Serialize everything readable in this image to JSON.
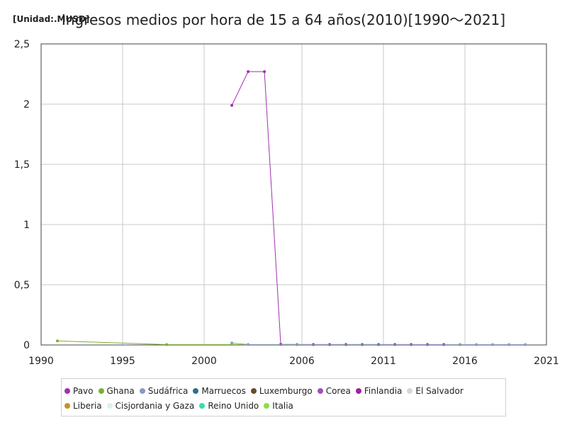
{
  "unit_label": "[Unidad:.MUSD]",
  "chart_data": {
    "type": "line",
    "title": "Ingresos medios por hora de 15 a 64 años(2010)[1990～2021]",
    "xlabel": "",
    "ylabel": "",
    "xlim": [
      1990,
      2021
    ],
    "ylim": [
      0,
      2.5
    ],
    "x_ticks": [
      1990,
      1995,
      2000,
      2006,
      2011,
      2016,
      2021
    ],
    "x_tick_labels": [
      "1990",
      "1995",
      "2000",
      "2006",
      "2011",
      "2016",
      "2021"
    ],
    "y_ticks": [
      0,
      0.5,
      1,
      1.5,
      2,
      2.5
    ],
    "y_tick_labels": [
      "0",
      "0,5",
      "1",
      "1,5",
      "2",
      "2,5"
    ],
    "grid": true,
    "legend_position": "bottom",
    "series": [
      {
        "name": "Pavo",
        "color": "#a030b0",
        "points": [
          [
            2001.7,
            1.99
          ],
          [
            2002.7,
            2.27
          ],
          [
            2003.7,
            2.27
          ],
          [
            2004.7,
            0.005
          ],
          [
            2005.7,
            0.004
          ],
          [
            2006.7,
            0.004
          ],
          [
            2007.7,
            0.004
          ],
          [
            2008.7,
            0.004
          ],
          [
            2009.7,
            0.004
          ],
          [
            2010.7,
            0.004
          ],
          [
            2011.7,
            0.004
          ],
          [
            2012.7,
            0.004
          ],
          [
            2013.7,
            0.004
          ],
          [
            2014.7,
            0.004
          ]
        ]
      },
      {
        "name": "Ghana",
        "color": "#7ab030",
        "points": [
          [
            1991,
            0.034
          ],
          [
            1997.7,
            0.003
          ],
          [
            2005.7,
            0.003
          ],
          [
            2015.7,
            0.003
          ]
        ]
      },
      {
        "name": "Sudáfrica",
        "color": "#8a9ac0",
        "points": [
          [
            2001.7,
            0.016
          ],
          [
            2002.7,
            0.004
          ],
          [
            2016.7,
            0.003
          ],
          [
            2017.7,
            0.003
          ],
          [
            2018.7,
            0.003
          ],
          [
            2019.7,
            0.003
          ]
        ]
      },
      {
        "name": "Marruecos",
        "color": "#2e6f8e",
        "points": []
      },
      {
        "name": "Luxemburgo",
        "color": "#6b4c2a",
        "points": []
      },
      {
        "name": "Corea",
        "color": "#a050b8",
        "points": []
      },
      {
        "name": "Finlandia",
        "color": "#a020a0",
        "points": []
      },
      {
        "name": "El Salvador",
        "color": "#d6d6d6",
        "points": []
      },
      {
        "name": "Liberia",
        "color": "#c8902a",
        "points": []
      },
      {
        "name": "Cisjordania y Gaza",
        "color": "#d4f4ea",
        "points": []
      },
      {
        "name": "Reino Unido",
        "color": "#30e0b0",
        "points": []
      },
      {
        "name": "Italia",
        "color": "#88e040",
        "points": []
      }
    ]
  }
}
